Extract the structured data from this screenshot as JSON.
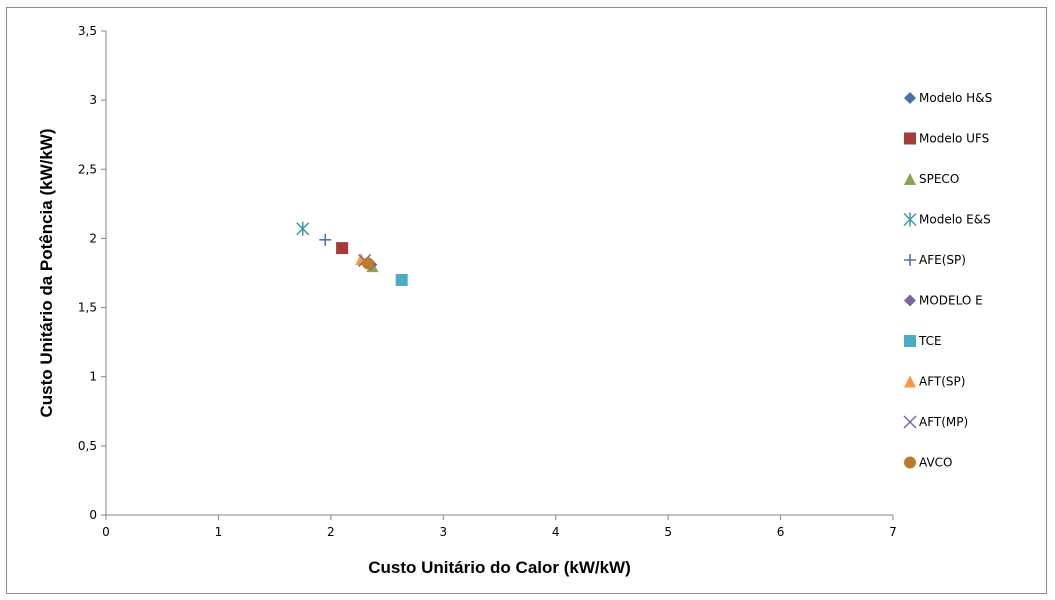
{
  "chart_data": {
    "type": "scatter",
    "xlabel": "Custo  Unitário do Calor (kW/kW)",
    "ylabel": "Custo  Unitário da Potência (kW/kW)",
    "xlim": [
      0,
      7
    ],
    "ylim": [
      0,
      3.5
    ],
    "x_ticks": [
      "0",
      "1",
      "2",
      "3",
      "4",
      "5",
      "6",
      "7"
    ],
    "y_ticks": [
      "0",
      "0,5",
      "1",
      "1,5",
      "2",
      "2,5",
      "3",
      "3,5"
    ],
    "grid": false,
    "legend_position": "right",
    "series": [
      {
        "name": "Modelo H&S",
        "marker": "diamond",
        "color": "#4a6fa5",
        "x": [
          2.36
        ],
        "y": [
          1.81
        ]
      },
      {
        "name": "Modelo UFS",
        "marker": "square",
        "color": "#a63c3a",
        "x": [
          2.1
        ],
        "y": [
          1.93
        ]
      },
      {
        "name": "SPECO",
        "marker": "triangle",
        "color": "#89a54e",
        "x": [
          2.37
        ],
        "y": [
          1.8
        ]
      },
      {
        "name": "Modelo E&S",
        "marker": "asterisk",
        "color": "#3d96ae",
        "x": [
          1.75
        ],
        "y": [
          2.07
        ]
      },
      {
        "name": "AFE(SP)",
        "marker": "plus",
        "color": "#4a6fa5",
        "x": [
          1.95
        ],
        "y": [
          1.99
        ]
      },
      {
        "name": "MODELO E",
        "marker": "diamond",
        "color": "#7f63a1",
        "x": [
          2.35
        ],
        "y": [
          1.81
        ]
      },
      {
        "name": "TCE",
        "marker": "square",
        "color": "#4bacc6",
        "x": [
          2.63
        ],
        "y": [
          1.7
        ]
      },
      {
        "name": "AFT(SP)",
        "marker": "triangle",
        "color": "#f79646",
        "x": [
          2.27
        ],
        "y": [
          1.85
        ]
      },
      {
        "name": "AFT(MP)",
        "marker": "x",
        "color": "#8064a2",
        "x": [
          2.3
        ],
        "y": [
          1.84
        ]
      },
      {
        "name": "AVCO",
        "marker": "circle",
        "color": "#c0782a",
        "x": [
          2.33
        ],
        "y": [
          1.82
        ]
      }
    ]
  }
}
